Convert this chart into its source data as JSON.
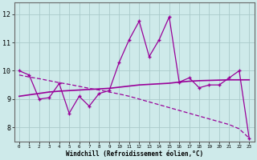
{
  "x": [
    0,
    1,
    2,
    3,
    4,
    5,
    6,
    7,
    8,
    9,
    10,
    11,
    12,
    13,
    14,
    15,
    16,
    17,
    18,
    19,
    20,
    21,
    22,
    23
  ],
  "main_data": [
    10.0,
    9.85,
    9.0,
    9.05,
    9.55,
    8.5,
    9.1,
    8.75,
    9.2,
    9.3,
    10.3,
    11.1,
    11.75,
    10.5,
    11.1,
    11.9,
    9.6,
    9.75,
    9.4,
    9.5,
    9.5,
    9.75,
    10.0,
    7.6
  ],
  "line_smooth": [
    9.1,
    9.15,
    9.2,
    9.25,
    9.28,
    9.3,
    9.32,
    9.34,
    9.36,
    9.38,
    9.42,
    9.46,
    9.5,
    9.52,
    9.54,
    9.56,
    9.6,
    9.63,
    9.65,
    9.66,
    9.67,
    9.68,
    9.68,
    9.68
  ],
  "line_diagonal": [
    9.85,
    9.78,
    9.72,
    9.65,
    9.58,
    9.52,
    9.45,
    9.38,
    9.32,
    9.25,
    9.18,
    9.1,
    9.0,
    8.9,
    8.8,
    8.7,
    8.6,
    8.5,
    8.4,
    8.3,
    8.2,
    8.1,
    7.95,
    7.62
  ],
  "color": "#990099",
  "bg_color": "#ceeaea",
  "grid_color": "#aacaca",
  "ylabel_ticks": [
    8,
    9,
    10,
    11,
    12
  ],
  "ylim": [
    7.5,
    12.4
  ],
  "xlim": [
    -0.5,
    23.5
  ],
  "xlabel": "Windchill (Refroidissement éolien,°C)"
}
